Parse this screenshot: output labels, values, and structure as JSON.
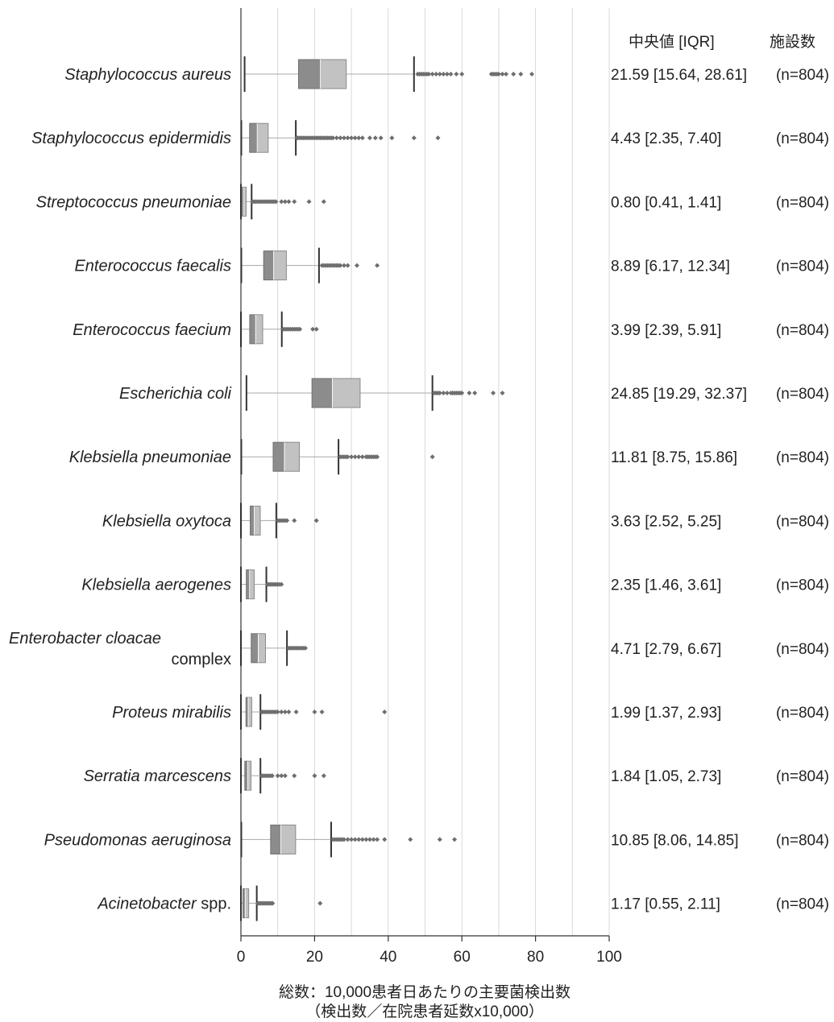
{
  "chart_data": {
    "type": "boxplot",
    "xlabel_line1": "総数：10,000患者日あたりの主要菌検出数",
    "xlabel_line2": "（検出数／在院患者延数x10,000）",
    "xlim": [
      0,
      100
    ],
    "xticks": [
      0,
      20,
      40,
      60,
      80,
      100
    ],
    "grid": true,
    "colors": {
      "lower_box": "#8c8c8c",
      "upper_box": "#c2c2c2",
      "whisker": "#a8a8a8",
      "outlier": "#6e6e6e",
      "axis": "#333333",
      "grid": "#d9d9d9"
    },
    "header": {
      "median_iqr": "中央値 [IQR]",
      "facilities": "施設数"
    },
    "rows": [
      {
        "name_italic": "Staphylococcus aureus",
        "name_plain": "",
        "name_line2": "",
        "q1": 15.64,
        "median": 21.59,
        "q3": 28.61,
        "whisker_low": 1.0,
        "whisker_high": 47.0,
        "outliers": [
          48.0,
          48.5,
          49,
          49.5,
          50,
          50.5,
          51,
          52,
          53,
          54,
          55,
          56,
          57,
          58.5,
          60,
          68,
          68.5,
          69,
          69.5,
          70,
          71,
          72,
          74,
          76,
          79
        ],
        "stat_text": "21.59 [15.64, 28.61]",
        "n_text": "(n=804)"
      },
      {
        "name_italic": "Staphylococcus epidermidis",
        "name_plain": "",
        "name_line2": "",
        "q1": 2.35,
        "median": 4.43,
        "q3": 7.4,
        "whisker_low": 0.1,
        "whisker_high": 14.9,
        "outliers": [
          15.2,
          15.5,
          16,
          16.5,
          17,
          17.5,
          18,
          18.5,
          19,
          19.5,
          20,
          20.5,
          21,
          21.5,
          22,
          22.5,
          23,
          23.5,
          24,
          24.5,
          25,
          26,
          27,
          28,
          29,
          30,
          31,
          32,
          33,
          35,
          36.5,
          38,
          41,
          47,
          53.5
        ],
        "stat_text": "4.43 [2.35, 7.40]",
        "n_text": "(n=804)"
      },
      {
        "name_italic": "Streptococcus pneumoniae",
        "name_plain": "",
        "name_line2": "",
        "q1": 0.41,
        "median": 0.8,
        "q3": 1.41,
        "whisker_low": 0.0,
        "whisker_high": 2.9,
        "outliers": [
          3.1,
          3.5,
          4,
          4.5,
          5,
          5.5,
          6,
          6.5,
          7,
          7.5,
          8,
          8.5,
          9,
          9.5,
          11,
          12,
          13,
          14.5,
          18.5,
          22.5
        ],
        "stat_text": "0.80 [0.41, 1.41]",
        "n_text": "(n=804)"
      },
      {
        "name_italic": "Enterococcus faecalis",
        "name_plain": "",
        "name_line2": "",
        "q1": 6.17,
        "median": 8.89,
        "q3": 12.34,
        "whisker_low": 0.1,
        "whisker_high": 21.2,
        "outliers": [
          22,
          22.5,
          23,
          23.5,
          24,
          24.5,
          25,
          25.5,
          26,
          26.5,
          27,
          28,
          29,
          31.5,
          37
        ],
        "stat_text": "8.89 [6.17, 12.34]",
        "n_text": "(n=804)"
      },
      {
        "name_italic": "Enterococcus faecium",
        "name_plain": "",
        "name_line2": "",
        "q1": 2.39,
        "median": 3.99,
        "q3": 5.91,
        "whisker_low": 0.0,
        "whisker_high": 11.1,
        "outliers": [
          11.5,
          12,
          12.5,
          13,
          13.5,
          14,
          14.5,
          15,
          15.5,
          16,
          19.5,
          20.5
        ],
        "stat_text": "3.99 [2.39, 5.91]",
        "n_text": "(n=804)"
      },
      {
        "name_italic": "Escherichia coli",
        "name_plain": "",
        "name_line2": "",
        "q1": 19.29,
        "median": 24.85,
        "q3": 32.37,
        "whisker_low": 1.5,
        "whisker_high": 52.0,
        "outliers": [
          52.5,
          53,
          53.5,
          54,
          55,
          56,
          57,
          57.5,
          58,
          58.5,
          59,
          59.5,
          60,
          62,
          63.5,
          68.5,
          71
        ],
        "stat_text": "24.85 [19.29, 32.37]",
        "n_text": "(n=804)"
      },
      {
        "name_italic": "Klebsiella pneumoniae",
        "name_plain": "",
        "name_line2": "",
        "q1": 8.75,
        "median": 11.81,
        "q3": 15.86,
        "whisker_low": 0.1,
        "whisker_high": 26.5,
        "outliers": [
          27,
          27.5,
          28,
          28.5,
          29,
          30,
          31,
          32,
          33,
          34,
          34.5,
          35,
          35.5,
          36,
          36.5,
          37,
          52
        ],
        "stat_text": "11.81 [8.75, 15.86]",
        "n_text": "(n=804)"
      },
      {
        "name_italic": "Klebsiella oxytoca",
        "name_plain": "",
        "name_line2": "",
        "q1": 2.52,
        "median": 3.63,
        "q3": 5.25,
        "whisker_low": 0.0,
        "whisker_high": 9.6,
        "outliers": [
          10,
          10.5,
          11,
          11.5,
          12,
          12.5,
          14.5,
          20.5
        ],
        "stat_text": "3.63 [2.52, 5.25]",
        "n_text": "(n=804)"
      },
      {
        "name_italic": "Klebsiella aerogenes",
        "name_plain": "",
        "name_line2": "",
        "q1": 1.46,
        "median": 2.35,
        "q3": 3.61,
        "whisker_low": 0.0,
        "whisker_high": 6.9,
        "outliers": [
          7.2,
          7.6,
          8,
          8.4,
          8.8,
          9.2,
          9.6,
          10,
          10.5,
          11
        ],
        "stat_text": "2.35 [1.46, 3.61]",
        "n_text": "(n=804)"
      },
      {
        "name_italic": "Enterobacter cloacae",
        "name_plain": "",
        "name_line2": "complex",
        "q1": 2.79,
        "median": 4.71,
        "q3": 6.67,
        "whisker_low": 0.0,
        "whisker_high": 12.5,
        "outliers": [
          13,
          13.5,
          14,
          14.5,
          15,
          15.5,
          16,
          16.5,
          17,
          17.5
        ],
        "stat_text": "4.71 [2.79, 6.67]",
        "n_text": "(n=804)"
      },
      {
        "name_italic": "Proteus mirabilis",
        "name_plain": "",
        "name_line2": "",
        "q1": 1.37,
        "median": 1.99,
        "q3": 2.93,
        "whisker_low": 0.0,
        "whisker_high": 5.3,
        "outliers": [
          5.6,
          6,
          6.5,
          7,
          7.5,
          8,
          8.5,
          9,
          9.5,
          10,
          11,
          12,
          13,
          15,
          20,
          22,
          39
        ],
        "stat_text": "1.99 [1.37, 2.93]",
        "n_text": "(n=804)"
      },
      {
        "name_italic": "Serratia marcescens",
        "name_plain": "",
        "name_line2": "",
        "q1": 1.05,
        "median": 1.84,
        "q3": 2.73,
        "whisker_low": 0.0,
        "whisker_high": 5.3,
        "outliers": [
          5.6,
          6,
          6.5,
          7,
          7.5,
          8,
          8.5,
          10,
          11,
          12,
          14.5,
          20,
          22.5
        ],
        "stat_text": "1.84 [1.05, 2.73]",
        "n_text": "(n=804)"
      },
      {
        "name_italic": "Pseudomonas aeruginosa",
        "name_plain": "",
        "name_line2": "",
        "q1": 8.06,
        "median": 10.85,
        "q3": 14.85,
        "whisker_low": 0.1,
        "whisker_high": 24.5,
        "outliers": [
          25,
          25.5,
          26,
          26.5,
          27,
          27.5,
          28,
          29,
          30,
          31,
          32,
          33,
          34,
          35,
          36,
          37,
          39,
          46,
          54,
          58
        ],
        "stat_text": "10.85 [8.06, 14.85]",
        "n_text": "(n=804)"
      },
      {
        "name_italic": "Acinetobacter",
        "name_plain": " spp.",
        "name_line2": "",
        "q1": 0.55,
        "median": 1.17,
        "q3": 2.11,
        "whisker_low": 0.0,
        "whisker_high": 4.3,
        "outliers": [
          4.6,
          5,
          5.4,
          5.8,
          6.2,
          6.6,
          7,
          7.4,
          7.8,
          8.2,
          8.6,
          21.5
        ],
        "stat_text": "1.17 [0.55, 2.11]",
        "n_text": "(n=804)"
      }
    ]
  }
}
